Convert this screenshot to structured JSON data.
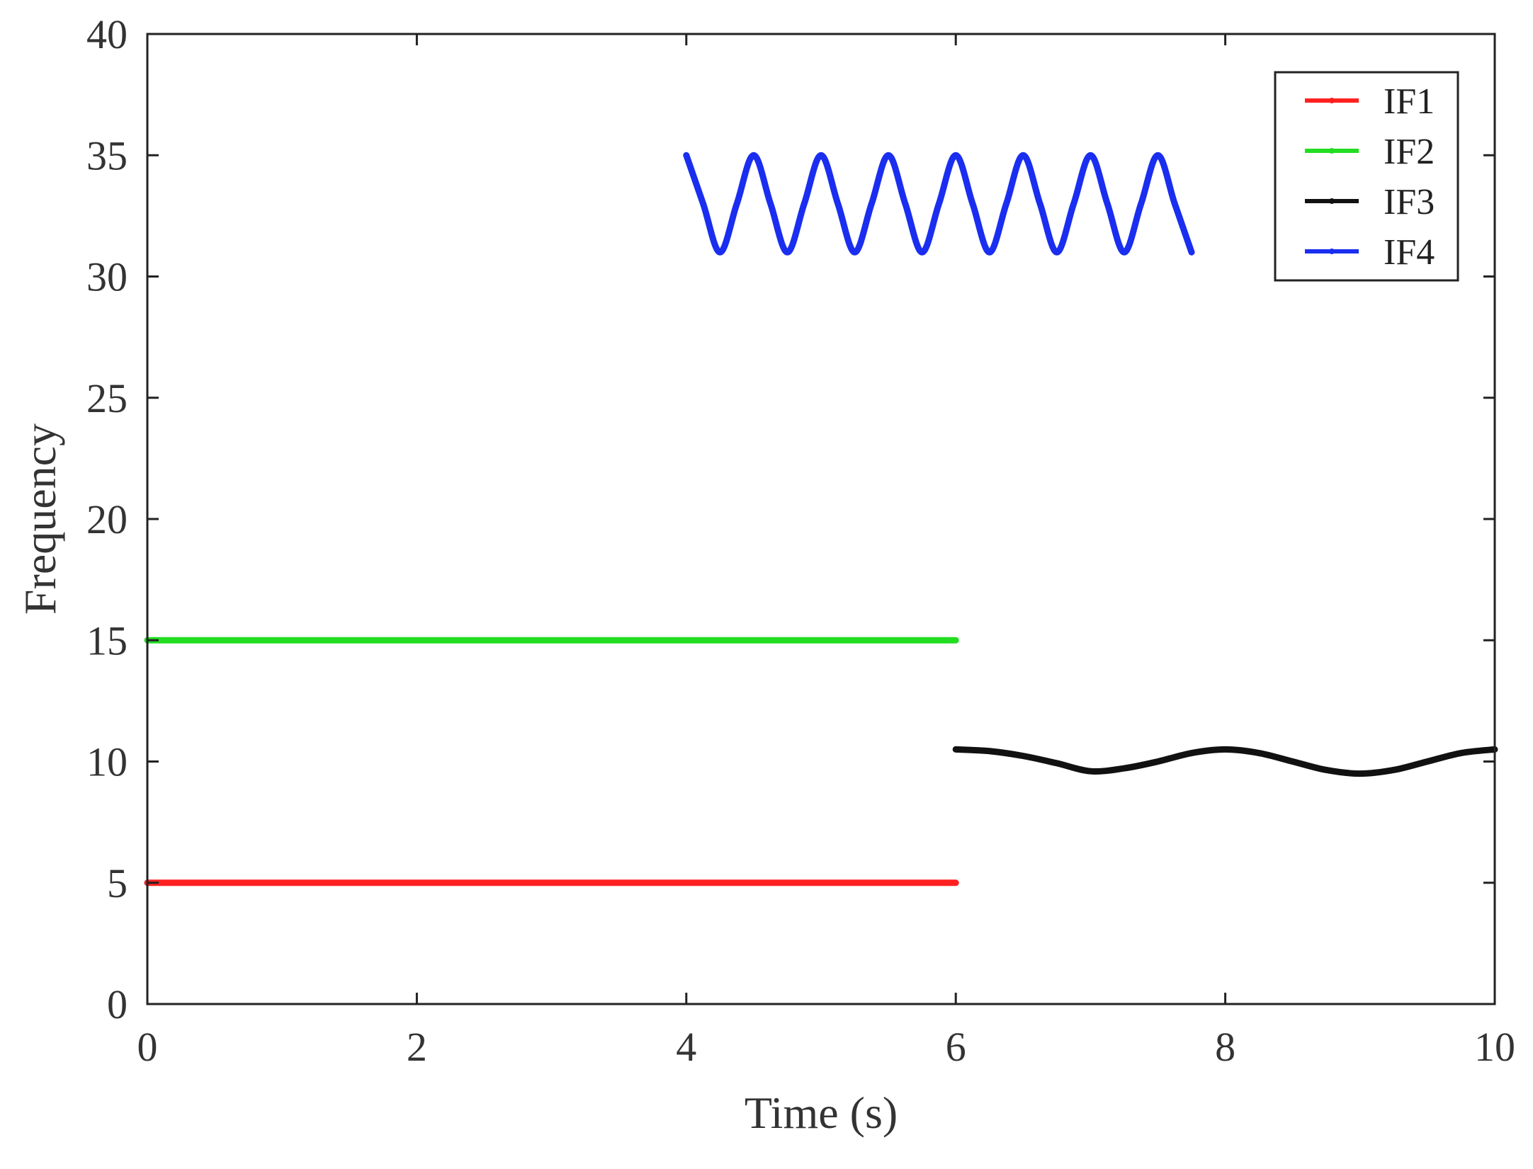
{
  "chart_data": {
    "type": "line",
    "title": "",
    "xlabel": "Time (s)",
    "ylabel": "Frequency",
    "xlim": [
      0,
      10
    ],
    "ylim": [
      0,
      40
    ],
    "xticks": [
      "0",
      "2",
      "4",
      "6",
      "8",
      "10"
    ],
    "yticks": [
      "0",
      "5",
      "10",
      "15",
      "20",
      "25",
      "30",
      "35",
      "40"
    ],
    "grid": false,
    "legend_position": "top-right",
    "series": [
      {
        "name": "IF1",
        "color": "#ff2020",
        "description_values": "constant 5 from t=0 to t=6",
        "x": [
          0,
          6
        ],
        "y": [
          5,
          5
        ]
      },
      {
        "name": "IF2",
        "color": "#22dd22",
        "x": [
          0,
          6
        ],
        "y": [
          15,
          15
        ]
      },
      {
        "name": "IF3",
        "color": "#111111",
        "x": [
          6.0,
          6.25,
          6.5,
          6.75,
          7.0,
          7.25,
          7.5,
          7.75,
          8.0,
          8.25,
          8.5,
          8.75,
          9.0,
          9.25,
          9.5,
          9.75,
          10.0
        ],
        "y": [
          10.5,
          10.43,
          10.23,
          9.93,
          9.6,
          9.72,
          10.0,
          10.35,
          10.5,
          10.35,
          10.0,
          9.65,
          9.5,
          9.65,
          10.0,
          10.35,
          10.5
        ]
      },
      {
        "name": "IF4",
        "color": "#1a2ef0",
        "x": [
          4.0,
          4.125,
          4.25,
          4.375,
          4.5,
          4.625,
          4.75,
          4.875,
          5.0,
          5.125,
          5.25,
          5.375,
          5.5,
          5.625,
          5.75,
          5.875,
          6.0,
          6.125,
          6.25,
          6.375,
          6.5,
          6.625,
          6.75,
          6.875,
          7.0,
          7.125,
          7.25,
          7.375,
          7.5,
          7.625,
          7.75
        ],
        "y": [
          35,
          33,
          31,
          33,
          35,
          33,
          31,
          33,
          35,
          33,
          31,
          33,
          35,
          33,
          31,
          33,
          35,
          33,
          31,
          33,
          35,
          33,
          31,
          33,
          35,
          33,
          31,
          33,
          35,
          33,
          31
        ]
      }
    ]
  }
}
